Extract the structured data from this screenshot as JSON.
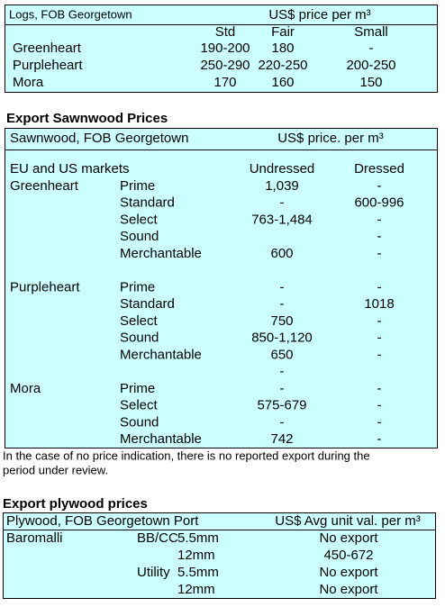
{
  "logs": {
    "title": "Logs, FOB Georgetown",
    "price_header": "US$ price per m³",
    "columns": [
      "Std",
      "Fair",
      "Small"
    ],
    "rows": [
      {
        "name": "Greenheart",
        "values": [
          "190-200",
          "180",
          "-"
        ]
      },
      {
        "name": "Purpleheart",
        "values": [
          "250-290",
          "220-250",
          "200-250"
        ]
      },
      {
        "name": "Mora",
        "values": [
          "170",
          "160",
          "150"
        ]
      }
    ]
  },
  "sawnwood": {
    "heading": "Export Sawnwood Prices",
    "title": "Sawnwood, FOB Georgetown",
    "price_header": "US$ price. per m³",
    "market": "EU and US markets",
    "columns": [
      "Undressed",
      "Dressed"
    ],
    "groups": [
      {
        "species": "Greenheart",
        "rows": [
          {
            "grade": "Prime",
            "undressed": "1,039",
            "dressed": "-"
          },
          {
            "grade": "Standard",
            "undressed": "-",
            "dressed": "600-996"
          },
          {
            "grade": "Select",
            "undressed": "763-1,484",
            "dressed": "-"
          },
          {
            "grade": "Sound",
            "dressed": "-"
          },
          {
            "grade": "Merchantable",
            "undressed": "600",
            "dressed": "-"
          }
        ]
      },
      {
        "species": "Purpleheart",
        "rows": [
          {
            "grade": "Prime",
            "undressed": "-",
            "dressed": "-"
          },
          {
            "grade": "Standard",
            "undressed": "-",
            "dressed": "1018"
          },
          {
            "grade": "Select",
            "undressed": "750",
            "dressed": "-"
          },
          {
            "grade": "Sound",
            "undressed": "850-1,120",
            "dressed": "-"
          },
          {
            "grade": "Merchantable",
            "undressed": "650",
            "dressed": "-"
          },
          {
            "undressed": "-"
          }
        ]
      },
      {
        "species": "Mora",
        "rows": [
          {
            "grade": "Prime",
            "undressed": "-",
            "dressed": "-"
          },
          {
            "grade": "Select",
            "undressed": "575-679",
            "dressed": "-"
          },
          {
            "grade": "Sound",
            "undressed": "-",
            "dressed": "-"
          },
          {
            "grade": "Merchantable",
            "undressed": "742",
            "dressed": "-"
          }
        ]
      }
    ],
    "note": [
      "In the case of no price indication, there is no reported export during the",
      "period under review."
    ]
  },
  "plywood": {
    "heading": "Export plywood prices",
    "title": "Plywood, FOB Georgetown Port",
    "price_header": "US$ Avg unit val. per m³",
    "rows": [
      {
        "species": "Baromalli",
        "grade": "BB/CC",
        "size": "5.5mm",
        "value": "No export"
      },
      {
        "size": "12mm",
        "value": "450-672"
      },
      {
        "grade": "Utility",
        "size": "5.5mm",
        "value": "No export"
      },
      {
        "size": "12mm",
        "value": "No export"
      }
    ]
  }
}
